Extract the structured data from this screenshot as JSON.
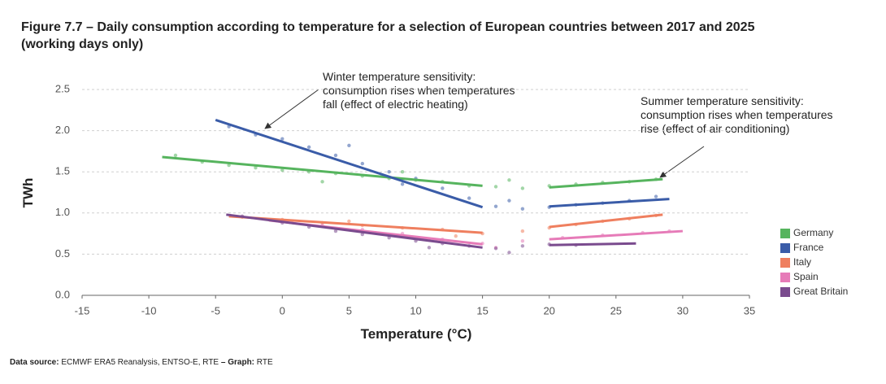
{
  "chart_data": {
    "type": "scatter",
    "title": [
      "Figure 7.7  – Daily consumption according to temperature for a selection of European countries between 2017 and 2025",
      "(working days only)"
    ],
    "xlabel": "Temperature (°C)",
    "ylabel": "TWh",
    "xlim": [
      -15,
      35
    ],
    "ylim": [
      0,
      2.5
    ],
    "xticks": [
      -15,
      -10,
      -5,
      0,
      5,
      10,
      15,
      20,
      25,
      30,
      35
    ],
    "yticks": [
      {
        "value": 0,
        "label": "0.0"
      },
      0.5,
      {
        "value": 1,
        "label": "1.0"
      },
      1.5,
      {
        "value": 2,
        "label": "2.0"
      },
      2.5
    ],
    "grid": true,
    "legend": "right",
    "annotations": [
      {
        "lines": [
          "Winter temperature sensitivity:",
          "consumption rises when temperatures",
          "fall (effect of electric heating)"
        ]
      },
      {
        "lines": [
          "Summer temperature sensitivity:",
          "consumption rises when temperatures",
          "rise (effect of air conditioning)"
        ]
      }
    ],
    "series": [
      {
        "name": "Germany",
        "color": "#56b45e",
        "x": [
          -8,
          -6,
          -4,
          -2,
          0,
          2,
          4,
          6,
          8,
          10,
          12,
          14,
          16,
          18,
          20,
          22,
          24,
          26,
          28,
          3,
          9,
          17
        ],
        "values": [
          1.7,
          1.62,
          1.58,
          1.55,
          1.52,
          1.5,
          1.48,
          1.45,
          1.42,
          1.4,
          1.38,
          1.33,
          1.32,
          1.3,
          1.33,
          1.35,
          1.37,
          1.38,
          1.41,
          1.38,
          1.5,
          1.4
        ],
        "trend_x": [
          -9,
          15,
          null,
          20,
          28.5
        ],
        "trend_values": [
          1.68,
          1.33,
          null,
          1.31,
          1.41
        ]
      },
      {
        "name": "France",
        "color": "#3a5ca8",
        "x": [
          -4,
          -2,
          0,
          2,
          4,
          6,
          8,
          10,
          12,
          14,
          16,
          18,
          20,
          22,
          24,
          26,
          28,
          5,
          9,
          17
        ],
        "values": [
          2.05,
          1.95,
          1.9,
          1.8,
          1.7,
          1.6,
          1.5,
          1.42,
          1.3,
          1.18,
          1.08,
          1.05,
          1.07,
          1.1,
          1.12,
          1.15,
          1.2,
          1.82,
          1.35,
          1.15
        ],
        "trend_x": [
          -5,
          15,
          null,
          20,
          29
        ],
        "trend_values": [
          2.13,
          1.07,
          null,
          1.08,
          1.17
        ]
      },
      {
        "name": "Italy",
        "color": "#ef7f5f",
        "x": [
          -3,
          0,
          3,
          6,
          9,
          12,
          15,
          18,
          20,
          22,
          24,
          26,
          28,
          5,
          13
        ],
        "values": [
          0.95,
          0.92,
          0.88,
          0.85,
          0.82,
          0.8,
          0.75,
          0.78,
          0.82,
          0.86,
          0.9,
          0.93,
          0.97,
          0.9,
          0.72
        ],
        "trend_x": [
          -4,
          15,
          null,
          20,
          28.5
        ],
        "trend_values": [
          0.96,
          0.76,
          null,
          0.83,
          0.98
        ]
      },
      {
        "name": "Spain",
        "color": "#e67bb8",
        "x": [
          0,
          3,
          6,
          9,
          12,
          15,
          18,
          21,
          24,
          27,
          29,
          7,
          16
        ],
        "values": [
          0.9,
          0.85,
          0.8,
          0.75,
          0.68,
          0.63,
          0.66,
          0.7,
          0.73,
          0.76,
          0.78,
          0.76,
          0.58
        ],
        "trend_x": [
          -1,
          15,
          null,
          20,
          30
        ],
        "trend_values": [
          0.91,
          0.62,
          null,
          0.68,
          0.78
        ]
      },
      {
        "name": "Great Britain",
        "color": "#7a4b8e",
        "x": [
          -3,
          0,
          2,
          4,
          6,
          8,
          10,
          12,
          14,
          16,
          18,
          20,
          22,
          11,
          17
        ],
        "values": [
          0.96,
          0.88,
          0.83,
          0.78,
          0.74,
          0.7,
          0.66,
          0.63,
          0.6,
          0.57,
          0.6,
          0.62,
          0.61,
          0.58,
          0.52
        ],
        "trend_x": [
          -4.2,
          15,
          null,
          20,
          26.5
        ],
        "trend_values": [
          0.98,
          0.58,
          null,
          0.61,
          0.63
        ]
      }
    ],
    "source": {
      "label": "Data source:",
      "text": "ECMWF ERA5 Reanalysis, ENTSO-E, RTE",
      "graph_label": "– Graph:",
      "graph": "RTE"
    }
  }
}
